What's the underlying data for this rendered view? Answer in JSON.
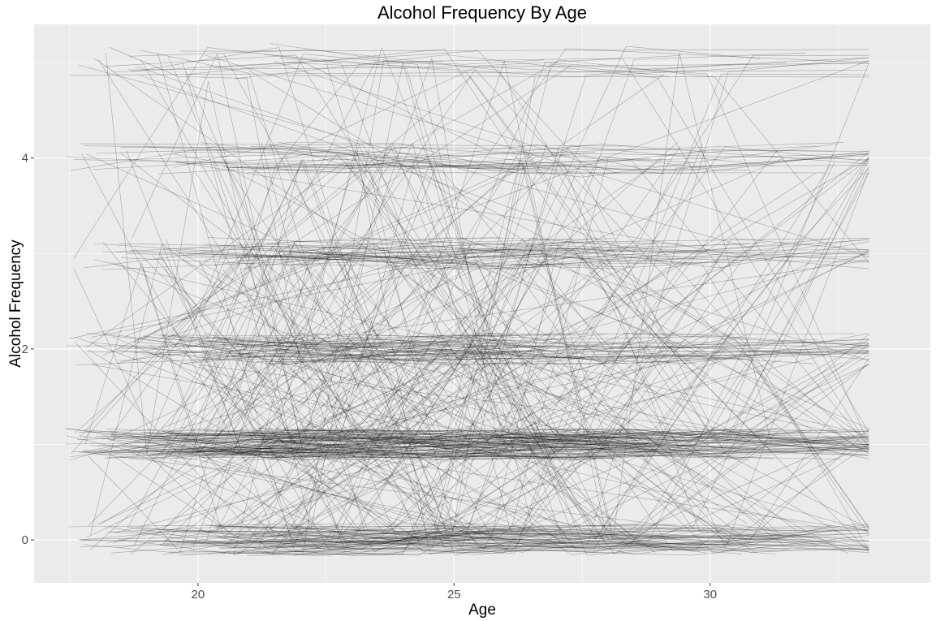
{
  "chart_data": {
    "type": "line",
    "title": "Alcohol Frequency By Age",
    "xlabel": "Age",
    "ylabel": "Alcohol Frequency",
    "xlim": [
      16.8,
      34.3
    ],
    "ylim": [
      -0.45,
      5.4
    ],
    "x_ticks": [
      20,
      25,
      30
    ],
    "x_tick_labels": [
      "20",
      "25",
      "30"
    ],
    "y_ticks": [
      0,
      2,
      4
    ],
    "y_tick_labels": [
      "0",
      "2",
      "4"
    ],
    "grid": true,
    "legend": "none",
    "panel_background": "#ebebeb",
    "gridline_color": "#ffffff",
    "line_color": "#000000",
    "line_alpha": 0.3,
    "series_description": "Jittered spaghetti plot: one line per individual tracing alcohol frequency (integer levels 0-5, with vertical jitter) across ages ~17.5-33. Individual values are too dense to read; representative series listed.",
    "series": [
      {
        "values": [
          [
            17.9,
            0.05
          ],
          [
            19.3,
            3.1
          ],
          [
            22.0,
            2.0
          ],
          [
            25.5,
            1.0
          ],
          [
            29.0,
            2.1
          ],
          [
            31.8,
            1.0
          ]
        ]
      },
      {
        "values": [
          [
            18.1,
            1.1
          ],
          [
            20.5,
            0.9
          ],
          [
            23.8,
            1.0
          ],
          [
            27.2,
            1.05
          ],
          [
            30.9,
            0.95
          ]
        ]
      },
      {
        "values": [
          [
            18.4,
            2.0
          ],
          [
            21.0,
            2.05
          ],
          [
            24.6,
            1.95
          ],
          [
            28.0,
            2.0
          ],
          [
            32.1,
            2.1
          ]
        ]
      },
      {
        "values": [
          [
            17.7,
            0.0
          ],
          [
            19.8,
            0.1
          ],
          [
            23.2,
            -0.05
          ],
          [
            26.9,
            0.05
          ],
          [
            31.5,
            0.0
          ]
        ]
      },
      {
        "values": [
          [
            18.0,
            4.05
          ],
          [
            21.3,
            4.1
          ],
          [
            25.0,
            3.95
          ],
          [
            27.5,
            3.8
          ],
          [
            32.5,
            4.15
          ]
        ]
      },
      {
        "values": [
          [
            18.2,
            5.1
          ],
          [
            19.0,
            0.9
          ],
          [
            20.2,
            4.8
          ],
          [
            22.2,
            0.1
          ],
          [
            24.0,
            5.0
          ],
          [
            26.0,
            1.0
          ]
        ]
      },
      {
        "values": [
          [
            21.4,
            5.2
          ],
          [
            24.0,
            5.0
          ],
          [
            27.5,
            4.9
          ],
          [
            31.5,
            5.0
          ]
        ]
      },
      {
        "values": [
          [
            18.6,
            3.0
          ],
          [
            21.8,
            2.95
          ],
          [
            25.2,
            3.05
          ],
          [
            28.6,
            2.9
          ],
          [
            32.0,
            3.1
          ]
        ]
      },
      {
        "values": [
          [
            17.8,
            1.0
          ],
          [
            18.9,
            2.9
          ],
          [
            20.0,
            1.0
          ],
          [
            21.5,
            0.0
          ],
          [
            23.0,
            1.1
          ],
          [
            24.5,
            2.0
          ]
        ]
      },
      {
        "values": [
          [
            22.5,
            5.0
          ],
          [
            24.8,
            1.0
          ],
          [
            26.3,
            4.0
          ],
          [
            28.1,
            0.0
          ],
          [
            29.4,
            5.1
          ],
          [
            31.2,
            1.0
          ]
        ]
      }
    ]
  }
}
